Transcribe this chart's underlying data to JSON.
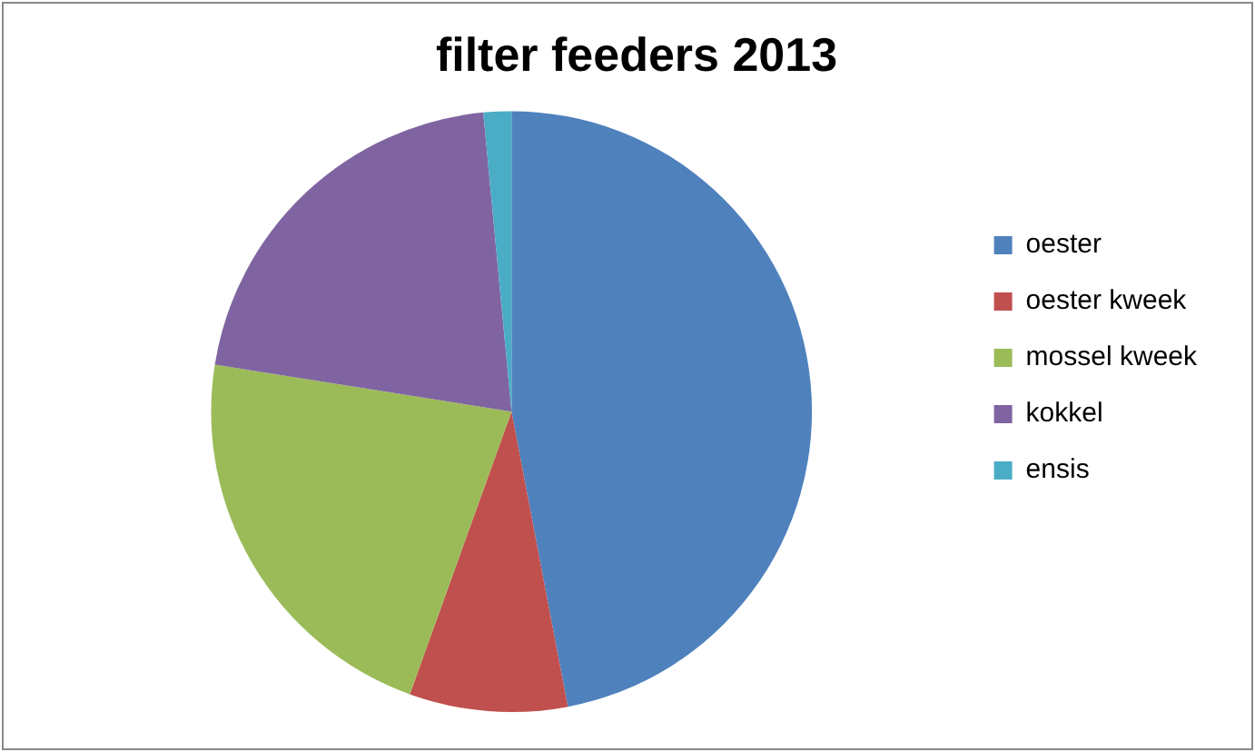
{
  "chart_data": {
    "type": "pie",
    "title": "filter feeders 2013",
    "categories": [
      "oester",
      "oester kweek",
      "mossel kweek",
      "kokkel",
      "ensis"
    ],
    "values": [
      47,
      8.5,
      22,
      21,
      1.5
    ],
    "colors": [
      "#4f81bd",
      "#c0504d",
      "#9bbb59",
      "#8064a2",
      "#4bacc6"
    ],
    "legend": "right"
  }
}
